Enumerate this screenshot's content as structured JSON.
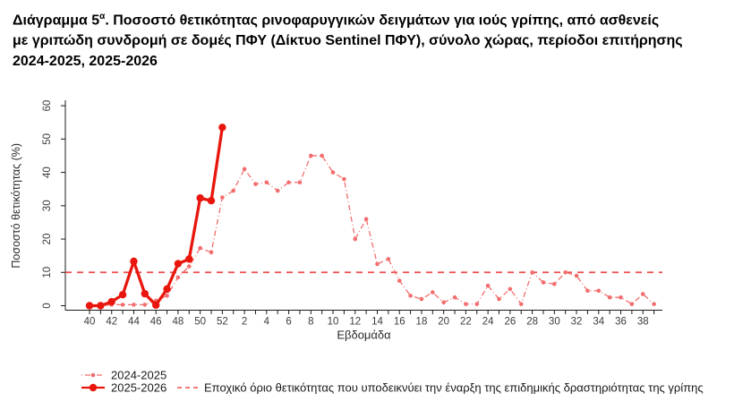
{
  "title": {
    "line1_prefix": "Διάγραμμα 5",
    "line1_sup": "α",
    "line1_rest": ". Ποσοστό θετικότητας ρινοφαρυγγικών δειγμάτων για ιούς γρίπης, από ασθενείς",
    "line2": "με γριπώδη συνδρομή σε δομές ΠΦΥ (Δίκτυο Sentinel ΠΦΥ), σύνολο χώρας, περίοδοι επιτήρησης",
    "line3": "2024-2025, 2025-2026"
  },
  "chart_data": {
    "type": "line",
    "x_categories": [
      40,
      41,
      42,
      43,
      44,
      45,
      46,
      47,
      48,
      49,
      50,
      51,
      52,
      1,
      2,
      3,
      4,
      5,
      6,
      7,
      8,
      9,
      10,
      11,
      12,
      13,
      14,
      15,
      16,
      17,
      18,
      19,
      20,
      21,
      22,
      23,
      24,
      25,
      26,
      27,
      28,
      29,
      30,
      31,
      32,
      33,
      34,
      35,
      36,
      37,
      38,
      39
    ],
    "series": [
      {
        "name": "2024-2025",
        "color": "#f26e6e",
        "line_style": "dash-dot thin with small round markers",
        "values": [
          0,
          0,
          0.3,
          0.3,
          0.3,
          0.3,
          1.5,
          3,
          8.5,
          11.8,
          17.3,
          16,
          32.5,
          34.5,
          41,
          36.5,
          37,
          34.5,
          37,
          37,
          45,
          45,
          40,
          38,
          20,
          26,
          12.5,
          14,
          7.5,
          3,
          2,
          4,
          1,
          2.5,
          0.5,
          0.5,
          6,
          2,
          5,
          0.5,
          10,
          7,
          6.5,
          10,
          9,
          4.5,
          4.5,
          2.5,
          2.5,
          0.5,
          3.5,
          0.5
        ]
      },
      {
        "name": "2025-2026",
        "color": "#e8160c",
        "line_style": "solid bold with large round markers",
        "values": [
          0,
          0,
          1.2,
          3.3,
          13.3,
          3.6,
          0.2,
          5,
          12.6,
          14,
          32.3,
          31.5,
          53.5
        ]
      }
    ],
    "threshold": {
      "value": 10,
      "color": "#f04c4c",
      "line_style": "dashed",
      "label": "Εποχικό όριο θετικότητας που υποδεικνύει την έναρξη της επιδημικής δραστηριότητας της γρίπης"
    },
    "xlabel": "Εβδομάδα",
    "ylabel": "Ποσοστό θετικότητας (%)",
    "ylim": [
      0,
      60
    ],
    "yticks": [
      0,
      10,
      20,
      30,
      40,
      50,
      60
    ],
    "xtick_labels_every": 2,
    "grid": false,
    "legend_position": "bottom-left"
  }
}
